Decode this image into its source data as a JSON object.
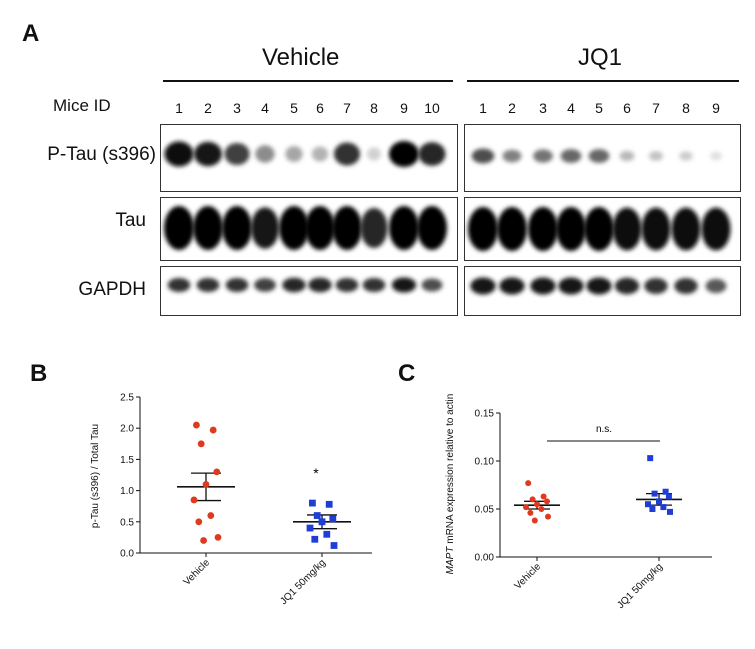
{
  "panel_a": {
    "letter": "A",
    "groups": [
      "Vehicle",
      "JQ1"
    ],
    "mice_label": "Mice ID",
    "vehicle_ids": [
      "1",
      "2",
      "3",
      "4",
      "5",
      "6",
      "7",
      "8",
      "9",
      "10"
    ],
    "jq1_ids": [
      "1",
      "2",
      "3",
      "4",
      "5",
      "6",
      "7",
      "8",
      "9"
    ],
    "rows": [
      "P-Tau (s396)",
      "Tau",
      "GAPDH"
    ],
    "band_intensity": {
      "ptau_vehicle": [
        0.95,
        0.9,
        0.75,
        0.45,
        0.35,
        0.3,
        0.8,
        0.18,
        1.0,
        0.85
      ],
      "ptau_jq1": [
        0.7,
        0.5,
        0.55,
        0.6,
        0.6,
        0.28,
        0.24,
        0.2,
        0.12
      ],
      "tau_vehicle": [
        1.0,
        1.0,
        1.0,
        0.9,
        1.0,
        1.0,
        1.0,
        0.85,
        1.0,
        1.0
      ],
      "tau_jq1": [
        1.0,
        1.0,
        1.0,
        1.0,
        1.0,
        0.95,
        0.95,
        0.95,
        0.95
      ],
      "gapdh_vehicle": [
        0.8,
        0.8,
        0.8,
        0.75,
        0.85,
        0.85,
        0.8,
        0.8,
        0.9,
        0.7
      ],
      "gapdh_jq1": [
        0.9,
        0.9,
        0.9,
        0.9,
        0.9,
        0.85,
        0.8,
        0.8,
        0.65
      ]
    }
  },
  "panel_b": {
    "letter": "B",
    "ylabel": "p-Tau (s396) / Total Tau",
    "significance": "*"
  },
  "panel_c": {
    "letter": "C",
    "ylabel_italic": "MAPT",
    "ylabel_rest": " mRNA expression relative to actin",
    "significance": "n.s."
  },
  "chart_data": [
    {
      "type": "scatter",
      "title": "",
      "xlabel": "",
      "ylabel": "p-Tau (s396) / Total Tau",
      "ylim": [
        0,
        2.5
      ],
      "yticks": [
        "0.0",
        "0.5",
        "1.0",
        "1.5",
        "2.0",
        "2.5"
      ],
      "categories": [
        "Vehicle",
        "JQ1 50mg/kg"
      ],
      "series": [
        {
          "name": "Vehicle",
          "color": "#e03a1e",
          "marker": "circle",
          "values": [
            2.05,
            1.97,
            1.75,
            1.3,
            1.1,
            0.85,
            0.6,
            0.5,
            0.25,
            0.2
          ],
          "mean": 1.06,
          "sem": 0.22
        },
        {
          "name": "JQ1 50mg/kg",
          "color": "#1f3ed6",
          "marker": "square",
          "values": [
            0.8,
            0.78,
            0.6,
            0.55,
            0.5,
            0.4,
            0.3,
            0.22,
            0.12
          ],
          "mean": 0.5,
          "sem": 0.11
        }
      ],
      "annotation": "*"
    },
    {
      "type": "scatter",
      "title": "",
      "xlabel": "",
      "ylabel": "MAPT mRNA expression relative to actin",
      "ylim": [
        0,
        0.15
      ],
      "yticks": [
        "0.00",
        "0.05",
        "0.10",
        "0.15"
      ],
      "categories": [
        "Vehicle",
        "JQ1 50mg/kg"
      ],
      "series": [
        {
          "name": "Vehicle",
          "color": "#e03a1e",
          "marker": "circle",
          "values": [
            0.077,
            0.063,
            0.06,
            0.058,
            0.055,
            0.052,
            0.05,
            0.046,
            0.042,
            0.038
          ],
          "mean": 0.054,
          "sem": 0.004
        },
        {
          "name": "JQ1 50mg/kg",
          "color": "#1f3ed6",
          "marker": "square",
          "values": [
            0.103,
            0.068,
            0.066,
            0.063,
            0.058,
            0.055,
            0.052,
            0.05,
            0.047
          ],
          "mean": 0.06,
          "sem": 0.006
        }
      ],
      "annotation": "n.s."
    }
  ]
}
